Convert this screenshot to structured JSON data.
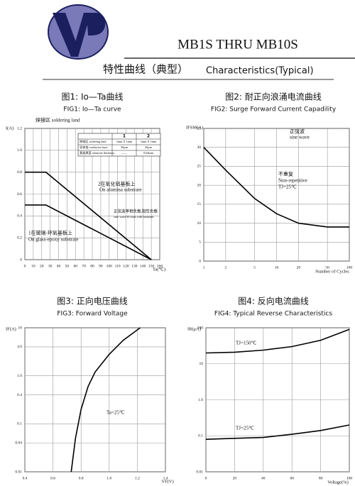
{
  "header": {
    "title": "MB1S THRU MB10S",
    "subtitle_cn": "特性曲线（典型）",
    "subtitle_en": "Characteristics(Typical)"
  },
  "chart_data": [
    {
      "type": "line",
      "title": "图1: Io—Ta曲线",
      "subtitle": "FIG1: Io—Ta curve",
      "ylabel": "I(A)",
      "xlabel": "Ta(℃)",
      "grid": true,
      "color": "#000000",
      "xlim": [
        0,
        160
      ],
      "xticks": [
        0,
        10,
        20,
        30,
        40,
        50,
        60,
        70,
        80,
        90,
        100,
        110,
        120,
        130,
        140,
        150,
        160
      ],
      "ylim": [
        0,
        1.2
      ],
      "yticks": [
        0,
        0.2,
        0.4,
        0.6,
        0.8,
        {
          "value": 1,
          "label": "1.0"
        },
        1.2
      ],
      "series": [
        {
          "name": "2在氧化铝基板上",
          "x": [
            0,
            25,
            150
          ],
          "values": [
            0.8,
            0.8,
            0
          ]
        },
        {
          "name": "1在玻璃-环氧基板上",
          "x": [
            0,
            25,
            150
          ],
          "values": [
            0.5,
            0.5,
            0
          ]
        }
      ],
      "annotations": [
        "焊接区  soldering land",
        "On alumina substrate",
        "On glass-epoxy substrate",
        "正弦波单相负载,阻性负载",
        "sine wave R-load with heatsink"
      ],
      "table": {
        "header": [
          "1",
          "2"
        ],
        "rows": [
          [
            "焊接区  soldering land",
            "1mm X 1mm",
            "1mm X 1mm"
          ],
          [
            "导体箔  conductor layer",
            "30μm",
            "20μm"
          ],
          [
            "基板厚度  substrate thickness",
            "——",
            "0.64mm"
          ]
        ]
      }
    },
    {
      "type": "line",
      "title": "图2: 耐正向浪涌电流曲线",
      "subtitle": "FIG2: Surge Forward Current Capadility",
      "ylabel": "IFSM(A)",
      "xlabel": "Number of Cycles",
      "grid": true,
      "color": "#000000",
      "xscale": "log",
      "xlim": [
        1,
        100
      ],
      "xticks": [
        1,
        2,
        5,
        10,
        20,
        50,
        100
      ],
      "ylim": [
        0,
        35
      ],
      "yticks": [
        0,
        5,
        10,
        15,
        20,
        25,
        30,
        35
      ],
      "series": [
        {
          "x": [
            1,
            2,
            5,
            10,
            20,
            50,
            100
          ],
          "values": [
            30,
            24,
            16.5,
            12.5,
            10,
            9,
            9
          ]
        }
      ],
      "annotations": [
        "正弦波",
        "sine wave",
        "不重复",
        "Non-repetitive",
        "TJ=25℃"
      ]
    },
    {
      "type": "line",
      "title": "图3: 正向电压曲线",
      "subtitle": "FIG3: Forward Voltage",
      "ylabel": "IF(A)",
      "xlabel": "VF(V)",
      "grid": true,
      "color": "#000000",
      "yscale": "log",
      "xlim": [
        0.4,
        1.4
      ],
      "xticks": [
        0.4,
        0.6,
        0.8,
        {
          "value": 1,
          "label": "1.0"
        },
        1.2,
        1.4
      ],
      "ylim": [
        0.01,
        10
      ],
      "yticks": [
        0.01,
        0.04,
        0.1,
        0.4,
        {
          "value": 1,
          "label": "1.0"
        },
        {
          "value": 4,
          "label": "4.0"
        },
        10
      ],
      "series": [
        {
          "x": [
            0.73,
            0.76,
            0.8,
            0.85,
            0.9,
            1.0,
            1.1,
            1.22
          ],
          "values": [
            0.01,
            0.05,
            0.2,
            0.6,
            1.2,
            2.8,
            5.5,
            10
          ]
        }
      ],
      "annotations": [
        "Ta=25℃"
      ]
    },
    {
      "type": "line",
      "title": "图4: 反向电流曲线",
      "subtitle": "FIG4: Typical Reverse Characteristics",
      "ylabel": "IR(μA)",
      "xlabel": "Voltage(%)",
      "grid": true,
      "color": "#000000",
      "yscale": "log",
      "xlim": [
        0,
        100
      ],
      "xticks": [
        0,
        20,
        40,
        60,
        80,
        100
      ],
      "ylim": [
        0.01,
        100
      ],
      "yticks": [
        0.01,
        0.1,
        {
          "value": 1,
          "label": "1.0"
        },
        10,
        100
      ],
      "series": [
        {
          "name": "TJ=150℃",
          "x": [
            0,
            20,
            40,
            60,
            80,
            100
          ],
          "values": [
            20,
            21,
            24,
            30,
            45,
            90
          ]
        },
        {
          "name": "TJ=25℃",
          "x": [
            0,
            20,
            40,
            60,
            80,
            100
          ],
          "values": [
            0.08,
            0.085,
            0.09,
            0.11,
            0.14,
            0.2
          ]
        }
      ]
    }
  ]
}
